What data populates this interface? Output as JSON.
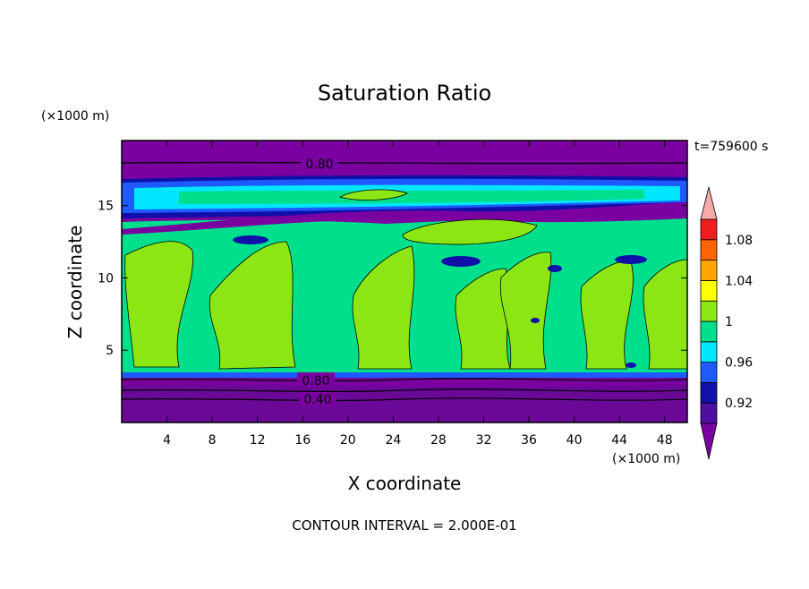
{
  "chart_data": {
    "type": "heatmap",
    "title": "Saturation Ratio",
    "xlabel": "X coordinate",
    "ylabel": "Z coordinate",
    "x_units": "(×1000 m)",
    "y_units": "(×1000 m)",
    "time_label": "t=759600 s",
    "footer": "CONTOUR INTERVAL = 2.000E-01",
    "xlim": [
      0,
      50
    ],
    "ylim": [
      0,
      19.5
    ],
    "x_ticks": [
      4,
      8,
      12,
      16,
      20,
      24,
      28,
      32,
      36,
      40,
      44,
      48
    ],
    "y_ticks": [
      5,
      10,
      15
    ],
    "colorbar": {
      "labels": [
        "1.08",
        "1.04",
        "1",
        "0.96",
        "0.92"
      ],
      "label_values": [
        1.08,
        1.04,
        1.0,
        0.96,
        0.92
      ],
      "levels": [
        0.9,
        0.92,
        0.94,
        0.96,
        0.98,
        1.0,
        1.02,
        1.04,
        1.06,
        1.08,
        1.1
      ],
      "colors": [
        "#4d0fa0",
        "#1010a8",
        "#1e5aff",
        "#00e6ff",
        "#00e08c",
        "#8ce614",
        "#ffff00",
        "#ffa500",
        "#ff6400",
        "#f01e1e"
      ],
      "under_color": "#7a00a0",
      "over_color": "#f6aaaa"
    },
    "contour_labels": [
      {
        "text": "0.80",
        "x": 17.5,
        "z": 18.2
      },
      {
        "text": "0.80",
        "x": 17.5,
        "z": 3.0
      },
      {
        "text": "0.40",
        "x": 17.5,
        "z": 1.7
      }
    ],
    "fields": {
      "background": "#7a00a0",
      "saturated_column": "#8ce614",
      "near_saturated": "#00e08c",
      "subsaturated": "#00e6ff",
      "dry": "#1e5aff"
    }
  }
}
